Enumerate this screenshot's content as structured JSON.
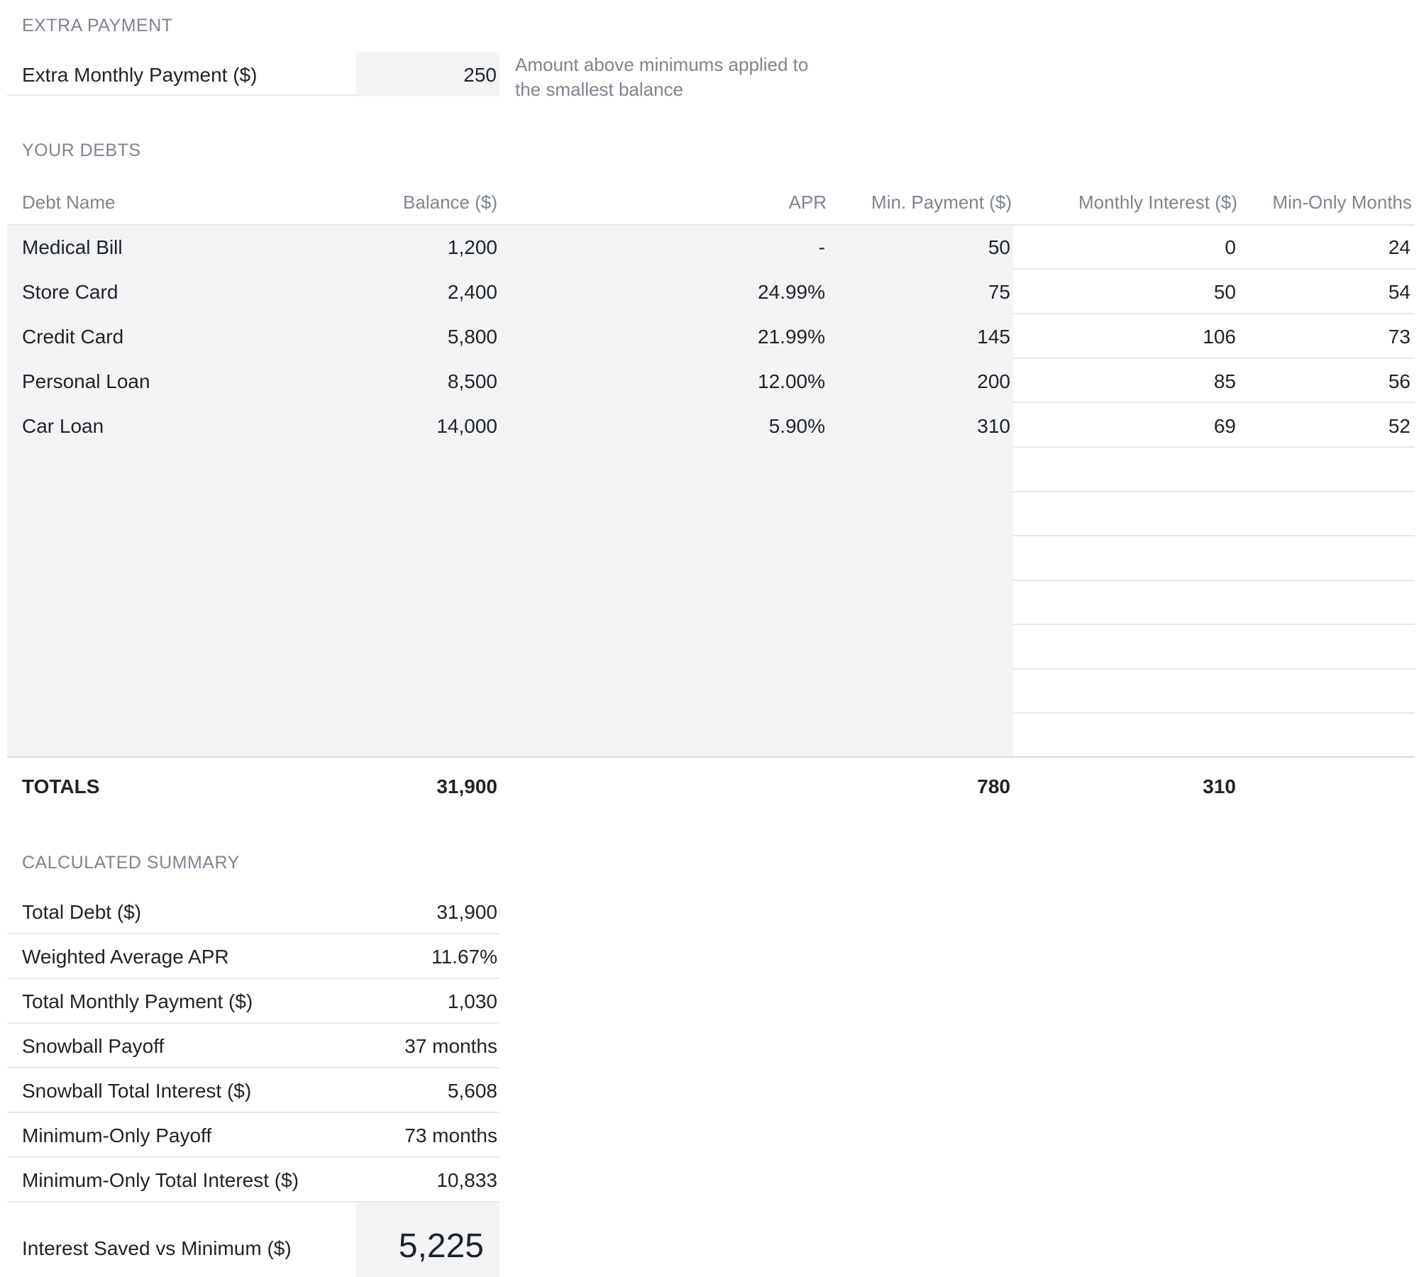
{
  "extra_payment": {
    "section_title": "EXTRA PAYMENT",
    "label": "Extra Monthly Payment ($)",
    "value": "250",
    "note_line1": "Amount above minimums applied to",
    "note_line2": "the smallest balance"
  },
  "debts": {
    "section_title": "YOUR DEBTS",
    "headers": {
      "name": "Debt Name",
      "balance": "Balance ($)",
      "apr": "APR",
      "min_payment": "Min. Payment ($)",
      "monthly_interest": "Monthly Interest ($)",
      "min_only_months": "Min-Only Months"
    },
    "rows": [
      {
        "name": "Medical Bill",
        "balance": "1,200",
        "apr": "-",
        "min_payment": "50",
        "monthly_interest": "0",
        "min_only_months": "24"
      },
      {
        "name": "Store Card",
        "balance": "2,400",
        "apr": "24.99%",
        "min_payment": "75",
        "monthly_interest": "50",
        "min_only_months": "54"
      },
      {
        "name": "Credit Card",
        "balance": "5,800",
        "apr": "21.99%",
        "min_payment": "145",
        "monthly_interest": "106",
        "min_only_months": "73"
      },
      {
        "name": "Personal Loan",
        "balance": "8,500",
        "apr": "12.00%",
        "min_payment": "200",
        "monthly_interest": "85",
        "min_only_months": "56"
      },
      {
        "name": "Car Loan",
        "balance": "14,000",
        "apr": "5.90%",
        "min_payment": "310",
        "monthly_interest": "69",
        "min_only_months": "52"
      }
    ],
    "totals": {
      "label": "TOTALS",
      "balance": "31,900",
      "min_payment": "780",
      "monthly_interest": "310"
    }
  },
  "summary": {
    "section_title": "CALCULATED SUMMARY",
    "rows": [
      {
        "label": "Total Debt ($)",
        "value": "31,900"
      },
      {
        "label": "Weighted Average APR",
        "value": "11.67%"
      },
      {
        "label": "Total Monthly Payment ($)",
        "value": "1,030"
      },
      {
        "label": "Snowball Payoff",
        "value": "37 months"
      },
      {
        "label": "Snowball Total Interest ($)",
        "value": "5,608"
      },
      {
        "label": "Minimum-Only Payoff",
        "value": "73 months"
      },
      {
        "label": "Minimum-Only Total Interest ($)",
        "value": "10,833"
      }
    ],
    "highlight": {
      "label": "Interest Saved vs Minimum ($)",
      "value": "5,225"
    }
  }
}
